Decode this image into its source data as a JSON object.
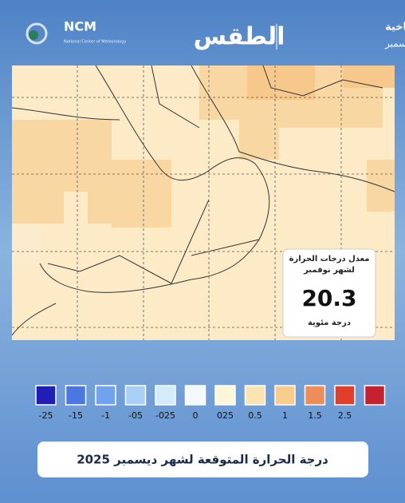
{
  "header": {
    "logo": "NCM",
    "logo_subtitle": "National Center of Meteorology",
    "title": "الطقس",
    "section": "الإحصائيات المناخية",
    "month": "ديسمبر"
  },
  "info_box": {
    "label": "معدل درجات الحرارة لشهر نوفمبر",
    "value": "20.3",
    "unit": "درجة مئوية"
  },
  "legend": [
    {
      "label": "-25",
      "color": "#1f1fb8"
    },
    {
      "label": "-15",
      "color": "#4a78e0"
    },
    {
      "label": "-1",
      "color": "#6fa3ee"
    },
    {
      "label": "-05",
      "color": "#a8d0f5"
    },
    {
      "label": "-025",
      "color": "#d3ecfb"
    },
    {
      "label": "0",
      "color": "#f4f9fc"
    },
    {
      "label": "025",
      "color": "#fdf6d8"
    },
    {
      "label": "0.5",
      "color": "#fbe4b2"
    },
    {
      "label": "1",
      "color": "#f7cc8c"
    },
    {
      "label": "1.5",
      "color": "#ee8d5c"
    },
    {
      "label": "2.5",
      "color": "#e0402a"
    },
    {
      "label": "",
      "color": "#c42230"
    }
  ],
  "footer": {
    "title": "درجة الحرارة المتوقعة لشهر ديسمبر 2025"
  }
}
